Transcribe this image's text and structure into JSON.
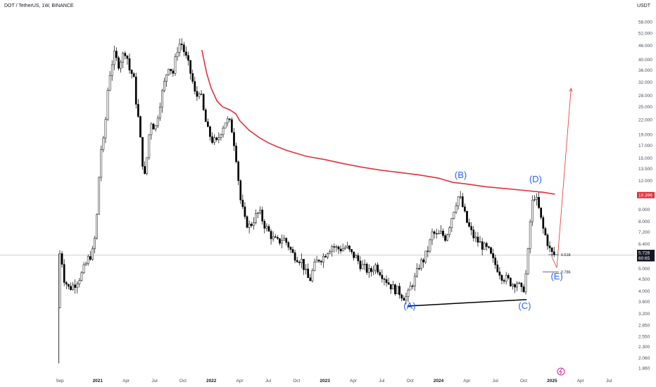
{
  "header": {
    "symbol_line": "DOT / TetherUS, 1W, BINANCE",
    "currency": "USDT"
  },
  "chart_data": {
    "type": "candlestick",
    "scale": "log",
    "ylim": [
      1.8,
      62
    ],
    "y_ticks": [
      "58.000",
      "52.000",
      "46.000",
      "40.000",
      "36.000",
      "32.000",
      "28.000",
      "25.000",
      "22.000",
      "19.000",
      "17.000",
      "15.000",
      "13.500",
      "12.000",
      "9.000",
      "8.000",
      "7.200",
      "6.400",
      "5.000",
      "4.500",
      "4.000",
      "3.600",
      "3.200",
      "2.850",
      "2.550",
      "2.300",
      "2.060",
      "1.860"
    ],
    "y_tick_values": [
      58,
      52,
      46,
      40,
      36,
      32,
      28,
      25,
      22,
      19,
      17,
      15,
      13.5,
      12,
      9,
      8,
      7.2,
      6.4,
      5,
      4.5,
      4,
      3.6,
      3.2,
      2.85,
      2.55,
      2.3,
      2.06,
      1.86
    ],
    "x_ticks": [
      {
        "label": "Sep",
        "t": 0.0,
        "bold": false
      },
      {
        "label": "2021",
        "t": 4.0,
        "bold": true
      },
      {
        "label": "Apr",
        "t": 7.0,
        "bold": false
      },
      {
        "label": "Jul",
        "t": 10.0,
        "bold": false
      },
      {
        "label": "Oct",
        "t": 13.0,
        "bold": false
      },
      {
        "label": "2022",
        "t": 16.0,
        "bold": true
      },
      {
        "label": "Apr",
        "t": 19.0,
        "bold": false
      },
      {
        "label": "Jul",
        "t": 22.0,
        "bold": false
      },
      {
        "label": "Oct",
        "t": 25.0,
        "bold": false
      },
      {
        "label": "2023",
        "t": 28.0,
        "bold": true
      },
      {
        "label": "Apr",
        "t": 31.0,
        "bold": false
      },
      {
        "label": "Jul",
        "t": 34.0,
        "bold": false
      },
      {
        "label": "Oct",
        "t": 37.0,
        "bold": false
      },
      {
        "label": "2024",
        "t": 40.0,
        "bold": true
      },
      {
        "label": "Apr",
        "t": 43.0,
        "bold": false
      },
      {
        "label": "Jul",
        "t": 46.0,
        "bold": false
      },
      {
        "label": "Oct",
        "t": 49.0,
        "bold": false
      },
      {
        "label": "2025",
        "t": 52.0,
        "bold": true
      },
      {
        "label": "Apr",
        "t": 55.0,
        "bold": false
      },
      {
        "label": "Jul",
        "t": 58.0,
        "bold": false
      }
    ],
    "price_path": [
      [
        -0.1,
        2.1
      ],
      [
        0.1,
        5.5
      ],
      [
        0.3,
        6.0
      ],
      [
        0.7,
        4.5
      ],
      [
        1.2,
        4.1
      ],
      [
        1.8,
        4.3
      ],
      [
        2.5,
        4.7
      ],
      [
        3.2,
        5.5
      ],
      [
        3.8,
        6.0
      ],
      [
        4.2,
        9.0
      ],
      [
        4.5,
        16
      ],
      [
        4.9,
        18
      ],
      [
        5.3,
        30
      ],
      [
        5.6,
        37
      ],
      [
        6.0,
        42
      ],
      [
        6.4,
        38
      ],
      [
        6.8,
        41
      ],
      [
        7.2,
        44
      ],
      [
        7.6,
        36
      ],
      [
        8.0,
        34
      ],
      [
        8.3,
        26
      ],
      [
        8.6,
        21
      ],
      [
        8.9,
        15
      ],
      [
        9.2,
        12.5
      ],
      [
        9.5,
        16
      ],
      [
        9.8,
        22
      ],
      [
        10.3,
        20
      ],
      [
        10.8,
        26
      ],
      [
        11.3,
        32
      ],
      [
        11.7,
        38
      ],
      [
        12.2,
        35
      ],
      [
        12.6,
        44
      ],
      [
        13.0,
        48
      ],
      [
        13.3,
        44
      ],
      [
        13.8,
        38
      ],
      [
        14.2,
        33
      ],
      [
        14.6,
        27
      ],
      [
        15.0,
        30
      ],
      [
        15.4,
        24
      ],
      [
        15.8,
        20
      ],
      [
        16.3,
        18
      ],
      [
        16.8,
        17.5
      ],
      [
        17.3,
        20
      ],
      [
        17.8,
        22
      ],
      [
        18.3,
        21
      ],
      [
        18.8,
        16
      ],
      [
        19.3,
        10
      ],
      [
        19.8,
        8
      ],
      [
        20.3,
        7.6
      ],
      [
        20.8,
        8.3
      ],
      [
        21.3,
        8.8
      ],
      [
        21.8,
        7.8
      ],
      [
        22.3,
        7.2
      ],
      [
        22.8,
        6.7
      ],
      [
        23.3,
        6.5
      ],
      [
        23.8,
        6.8
      ],
      [
        24.3,
        6.4
      ],
      [
        24.8,
        5.8
      ],
      [
        25.3,
        5.6
      ],
      [
        25.8,
        5.4
      ],
      [
        26.2,
        4.8
      ],
      [
        26.6,
        4.4
      ],
      [
        27.0,
        5.0
      ],
      [
        27.5,
        5.5
      ],
      [
        28.0,
        5.6
      ],
      [
        28.5,
        6.0
      ],
      [
        29.0,
        6.3
      ],
      [
        29.5,
        6.1
      ],
      [
        30.0,
        6.1
      ],
      [
        30.5,
        6.2
      ],
      [
        31.0,
        5.8
      ],
      [
        31.5,
        5.6
      ],
      [
        32.0,
        5.2
      ],
      [
        32.5,
        5.0
      ],
      [
        33.0,
        4.8
      ],
      [
        33.5,
        5.2
      ],
      [
        34.0,
        4.9
      ],
      [
        34.5,
        4.6
      ],
      [
        35.0,
        4.3
      ],
      [
        35.5,
        4.1
      ],
      [
        36.0,
        4.0
      ],
      [
        36.5,
        3.8
      ],
      [
        36.9,
        3.75
      ],
      [
        37.3,
        4.2
      ],
      [
        37.8,
        4.6
      ],
      [
        38.2,
        5.2
      ],
      [
        38.7,
        5.5
      ],
      [
        39.2,
        6.2
      ],
      [
        39.6,
        7.2
      ],
      [
        40.0,
        6.9
      ],
      [
        40.5,
        7.1
      ],
      [
        41.0,
        6.8
      ],
      [
        41.5,
        8.0
      ],
      [
        42.0,
        9.5
      ],
      [
        42.4,
        10.4
      ],
      [
        42.8,
        9.2
      ],
      [
        43.2,
        8.0
      ],
      [
        43.6,
        7.3
      ],
      [
        44.0,
        6.8
      ],
      [
        44.5,
        6.5
      ],
      [
        45.0,
        6.2
      ],
      [
        45.5,
        6.0
      ],
      [
        46.0,
        5.4
      ],
      [
        46.5,
        5.0
      ],
      [
        47.0,
        4.6
      ],
      [
        47.5,
        4.5
      ],
      [
        48.0,
        4.3
      ],
      [
        48.5,
        4.4
      ],
      [
        48.9,
        4.1
      ],
      [
        49.1,
        3.9
      ],
      [
        49.4,
        4.5
      ],
      [
        49.7,
        6.0
      ],
      [
        50.0,
        9.0
      ],
      [
        50.3,
        10.5
      ],
      [
        50.6,
        9.8
      ],
      [
        50.9,
        8.8
      ],
      [
        51.2,
        7.6
      ],
      [
        51.6,
        6.8
      ],
      [
        52.0,
        6.0
      ],
      [
        52.3,
        5.75
      ]
    ],
    "series": [
      {
        "name": "MA",
        "color": "#e0323a",
        "points": [
          [
            15.0,
            44.0
          ],
          [
            15.5,
            35.0
          ],
          [
            16.0,
            30.0
          ],
          [
            16.6,
            26.5
          ],
          [
            17.2,
            25.0
          ],
          [
            18.0,
            24.2
          ],
          [
            18.6,
            23.3
          ],
          [
            19.0,
            21.8
          ],
          [
            20.0,
            19.8
          ],
          [
            21.0,
            18.5
          ],
          [
            22.0,
            17.5
          ],
          [
            23.0,
            16.8
          ],
          [
            24.0,
            16.2
          ],
          [
            26.0,
            15.3
          ],
          [
            28.0,
            14.8
          ],
          [
            30.0,
            14.2
          ],
          [
            32.0,
            13.7
          ],
          [
            34.0,
            13.3
          ],
          [
            36.0,
            13.0
          ],
          [
            38.0,
            12.7
          ],
          [
            40.0,
            12.3
          ],
          [
            41.5,
            11.8
          ],
          [
            43.0,
            11.6
          ],
          [
            45.0,
            11.3
          ],
          [
            47.0,
            11.1
          ],
          [
            49.0,
            10.9
          ],
          [
            51.0,
            10.7
          ],
          [
            52.3,
            10.5
          ]
        ]
      }
    ],
    "annotations": {
      "waves": [
        {
          "label": "(A)",
          "t": 36.95,
          "v": 3.35
        },
        {
          "label": "(B)",
          "t": 42.35,
          "v": 12.3
        },
        {
          "label": "(C)",
          "t": 49.1,
          "v": 3.35
        },
        {
          "label": "(D)",
          "t": 50.25,
          "v": 11.8
        },
        {
          "label": "(E)",
          "t": 52.5,
          "v": 4.5
        }
      ],
      "trendline": {
        "from": [
          36.7,
          3.45
        ],
        "to": [
          49.3,
          3.68
        ],
        "color": "#000000"
      },
      "fib_levels": [
        {
          "label": "0.618",
          "value": 5.75,
          "t_from": 51.6,
          "t_to": 52.7
        },
        {
          "label": "0.786",
          "value": 4.85,
          "t_from": 51.0,
          "t_to": 52.7
        }
      ],
      "projection": {
        "color": "#e0323a",
        "points": [
          [
            52.0,
            5.6
          ],
          [
            52.5,
            5.05
          ],
          [
            54.0,
            30.0
          ]
        ]
      },
      "price_tags": [
        {
          "label": "10.396",
          "value": 10.396,
          "color": "#e0323a"
        },
        {
          "label": "5.726",
          "value": 5.85,
          "color": "#131722"
        },
        {
          "label": "60:65",
          "value": 5.55,
          "color": "#131722"
        }
      ],
      "current_price": 5.726
    },
    "grid": false,
    "legend": "none"
  }
}
